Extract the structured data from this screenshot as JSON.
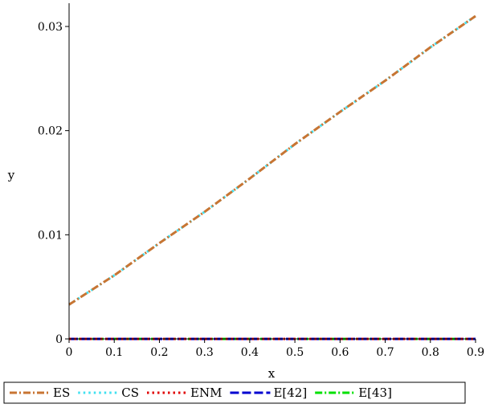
{
  "chart_data": {
    "type": "line",
    "title": "",
    "xlabel": "x",
    "ylabel": "y",
    "xlim": [
      0,
      0.9
    ],
    "ylim": [
      0,
      0.031
    ],
    "x_ticks": [
      0,
      0.1,
      0.2,
      0.3,
      0.4,
      0.5,
      0.6,
      0.7,
      0.8,
      0.9
    ],
    "x_tick_labels": [
      "0",
      "0.1",
      "0.2",
      "0.3",
      "0.4",
      "0.5",
      "0.6",
      "0.7",
      "0.8",
      "0.9"
    ],
    "y_ticks": [
      0,
      0.01,
      0.02,
      0.03
    ],
    "y_tick_labels": [
      "0",
      "0.01",
      "0.02",
      "0.03"
    ],
    "grid": false,
    "legend_position": "bottom",
    "series": [
      {
        "name": "ES",
        "color": "#c87533",
        "dash": "dashdot",
        "x": [
          0,
          0.1,
          0.2,
          0.3,
          0.4,
          0.5,
          0.6,
          0.7,
          0.8,
          0.9
        ],
        "y": [
          0.0033,
          0.0061,
          0.0092,
          0.0122,
          0.0154,
          0.0187,
          0.0218,
          0.0248,
          0.028,
          0.031
        ]
      },
      {
        "name": "CS",
        "color": "#40e0f0",
        "dash": "dot",
        "x": [
          0,
          0.1,
          0.2,
          0.3,
          0.4,
          0.5,
          0.6,
          0.7,
          0.8,
          0.9
        ],
        "y": [
          0.0033,
          0.0061,
          0.0092,
          0.0122,
          0.0154,
          0.0187,
          0.0218,
          0.0248,
          0.028,
          0.031
        ]
      },
      {
        "name": "ENM",
        "color": "#e00000",
        "dash": "dot",
        "x": [
          0,
          0.9
        ],
        "y": [
          0,
          0
        ]
      },
      {
        "name": "E[42]",
        "color": "#0000d0",
        "dash": "longdash",
        "x": [
          0,
          0.9
        ],
        "y": [
          0,
          0
        ]
      },
      {
        "name": "E[43]",
        "color": "#00e000",
        "dash": "dashdot",
        "x": [
          0,
          0.9
        ],
        "y": [
          0,
          0
        ]
      }
    ]
  }
}
